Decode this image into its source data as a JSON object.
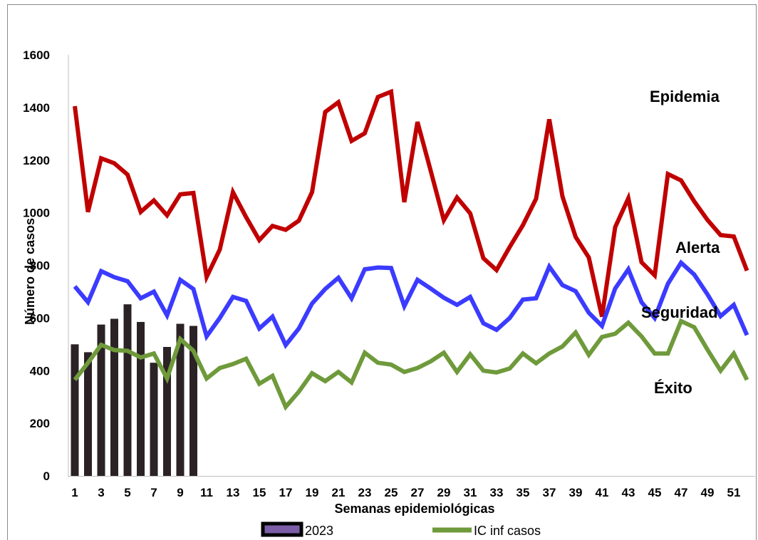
{
  "chart_data": {
    "type": "line",
    "xlabel": "Semanas epidemiológicas",
    "ylabel": "Número de casos",
    "ylim": [
      0,
      1600
    ],
    "yticks": [
      "0",
      "200",
      "400",
      "600",
      "800",
      "1000",
      "1200",
      "1400",
      "1600"
    ],
    "xticks": [
      "1",
      "3",
      "5",
      "7",
      "9",
      "11",
      "13",
      "15",
      "17",
      "19",
      "21",
      "23",
      "25",
      "27",
      "29",
      "31",
      "33",
      "35",
      "37",
      "39",
      "41",
      "43",
      "45",
      "47",
      "49",
      "51"
    ],
    "grid": false,
    "x": [
      1,
      2,
      3,
      4,
      5,
      6,
      7,
      8,
      9,
      10,
      11,
      12,
      13,
      14,
      15,
      16,
      17,
      18,
      19,
      20,
      21,
      22,
      23,
      24,
      25,
      26,
      27,
      28,
      29,
      30,
      31,
      32,
      33,
      34,
      35,
      36,
      37,
      38,
      39,
      40,
      41,
      42,
      43,
      44,
      45,
      46,
      47,
      48,
      49,
      50,
      51,
      52
    ],
    "bars": {
      "name": "2023",
      "color": "#2b2226",
      "legend_color": "#7b5ea7",
      "x": [
        1,
        2,
        3,
        4,
        5,
        6,
        7,
        8,
        9,
        10
      ],
      "values": [
        500,
        470,
        575,
        597,
        652,
        585,
        430,
        490,
        578,
        570
      ]
    },
    "series": [
      {
        "color": "#c00000",
        "values": [
          1405,
          1003,
          1207,
          1188,
          1145,
          1003,
          1047,
          990,
          1070,
          1075,
          756,
          860,
          1078,
          983,
          896,
          950,
          935,
          970,
          1078,
          1383,
          1420,
          1273,
          1302,
          1440,
          1460,
          1040,
          1345,
          1160,
          972,
          1058,
          998,
          827,
          782,
          870,
          953,
          1053,
          1355,
          1062,
          908,
          830,
          605,
          945,
          1055,
          812,
          762,
          1147,
          1123,
          1043,
          973,
          915,
          910,
          780
        ]
      },
      {
        "color": "#3b3bff",
        "values": [
          720,
          660,
          778,
          755,
          740,
          675,
          700,
          610,
          745,
          710,
          530,
          600,
          680,
          665,
          560,
          605,
          497,
          560,
          655,
          710,
          753,
          675,
          785,
          792,
          790,
          645,
          745,
          712,
          677,
          650,
          680,
          580,
          555,
          600,
          670,
          675,
          795,
          725,
          702,
          620,
          570,
          712,
          785,
          660,
          600,
          730,
          810,
          765,
          690,
          607,
          650,
          535
        ]
      },
      {
        "name": "IC inf casos",
        "color": "#6f9a3b",
        "values": [
          365,
          430,
          498,
          478,
          475,
          450,
          465,
          370,
          520,
          475,
          370,
          410,
          425,
          445,
          350,
          380,
          262,
          320,
          390,
          360,
          395,
          355,
          468,
          430,
          423,
          395,
          410,
          435,
          468,
          395,
          462,
          400,
          393,
          408,
          465,
          428,
          465,
          492,
          545,
          460,
          528,
          540,
          582,
          530,
          465,
          465,
          588,
          565,
          480,
          400,
          465,
          365
        ]
      }
    ],
    "annotations": [
      "Epidemia",
      "Alerta",
      "Seguridad",
      "Éxito"
    ],
    "legend": {
      "placement": "bottom",
      "entries": [
        "2023",
        "IC inf casos"
      ]
    }
  }
}
